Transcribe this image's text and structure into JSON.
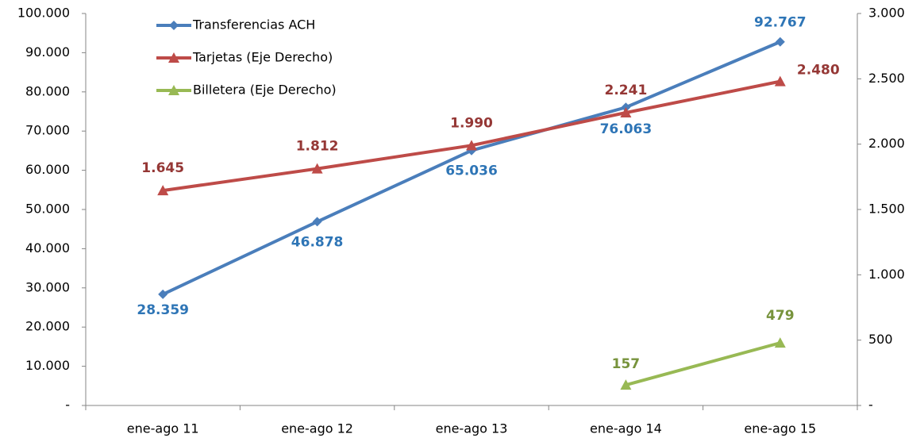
{
  "chart_data": {
    "type": "line",
    "categories": [
      "ene-ago 11",
      "ene-ago 12",
      "ene-ago 13",
      "ene-ago 14",
      "ene-ago 15"
    ],
    "series": [
      {
        "name": "Transferencias ACH",
        "color": "#4a7ebb",
        "marker": "diamond",
        "values": [
          28359,
          46878,
          65036,
          76063,
          92767
        ],
        "value_labels": [
          "28.359",
          "46.878",
          "65.036",
          "76.063",
          "92.767"
        ]
      },
      {
        "name": "Tarjetas (Eje Derecho)",
        "color": "#be4b48",
        "marker": "triangle",
        "axis": "y2",
        "values": [
          1645,
          1812,
          1990,
          2241,
          2480
        ],
        "value_labels": [
          "1.645",
          "1.812",
          "1.990",
          "2.241",
          "2.480"
        ]
      },
      {
        "name": "Billetera (Eje Derecho)",
        "color": "#98b954",
        "marker": "triangle",
        "axis": "y2",
        "values": [
          null,
          null,
          null,
          157,
          479
        ]
      }
    ],
    "ylim": [
      0,
      100000
    ],
    "yticks": [
      {
        "value": 0,
        "label": "-"
      },
      {
        "value": 10000,
        "label": "10.000"
      },
      {
        "value": 20000,
        "label": "20.000"
      },
      {
        "value": 30000,
        "label": "30.000"
      },
      {
        "value": 40000,
        "label": "40.000"
      },
      {
        "value": 50000,
        "label": "50.000"
      },
      {
        "value": 60000,
        "label": "60.000"
      },
      {
        "value": 70000,
        "label": "70.000"
      },
      {
        "value": 80000,
        "label": "80.000"
      },
      {
        "value": 90000,
        "label": "90.000"
      },
      {
        "value": 100000,
        "label": "100.000"
      }
    ],
    "y2lim": [
      0,
      3000
    ],
    "y2ticks": [
      {
        "value": 0,
        "label": "-"
      },
      500,
      {
        "value": 1000,
        "label": "1.000"
      },
      {
        "value": 1500,
        "label": "1.500"
      },
      {
        "value": 2000,
        "label": "2.000"
      },
      {
        "value": 2500,
        "label": "2.500"
      },
      {
        "value": 3000,
        "label": "3.000"
      }
    ],
    "grid": false,
    "legend": "top-left"
  }
}
